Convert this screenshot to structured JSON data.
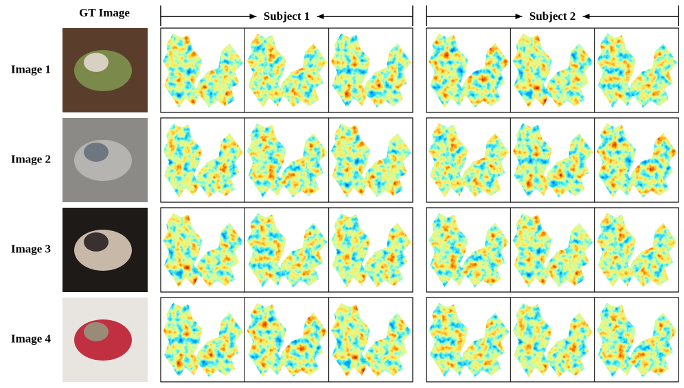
{
  "header": {
    "gt_label": "GT Image",
    "subjects": [
      "Subject 1",
      "Subject 2"
    ]
  },
  "rows": [
    "Image 1",
    "Image 2",
    "Image 3",
    "Image 4"
  ]
}
